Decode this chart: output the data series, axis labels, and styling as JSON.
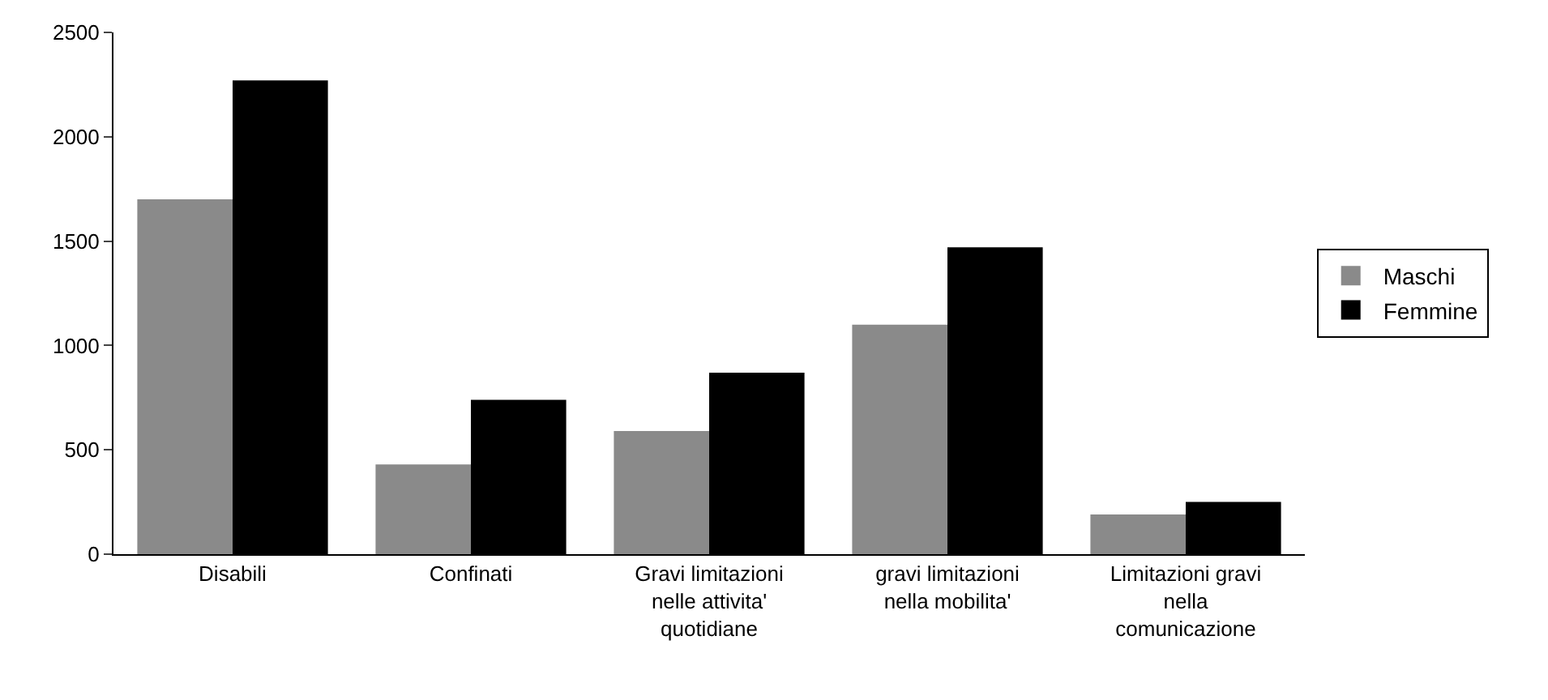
{
  "chart_data": {
    "type": "bar",
    "categories": [
      "Disabili",
      "Confinati",
      "Gravi limitazioni\nnelle attivita'\nquotidiane",
      "gravi limitazioni\nnella mobilita'",
      "Limitazioni gravi\nnella\ncomunicazione"
    ],
    "series": [
      {
        "name": "Maschi",
        "color": "#8a8a8a",
        "values": [
          1700,
          430,
          590,
          1100,
          190
        ]
      },
      {
        "name": "Femmine",
        "color": "#000000",
        "values": [
          2270,
          740,
          870,
          1470,
          250
        ]
      }
    ],
    "ylim": [
      0,
      2500
    ],
    "yticks": [
      0,
      500,
      1000,
      1500,
      2000,
      2500
    ],
    "legend": "right"
  }
}
